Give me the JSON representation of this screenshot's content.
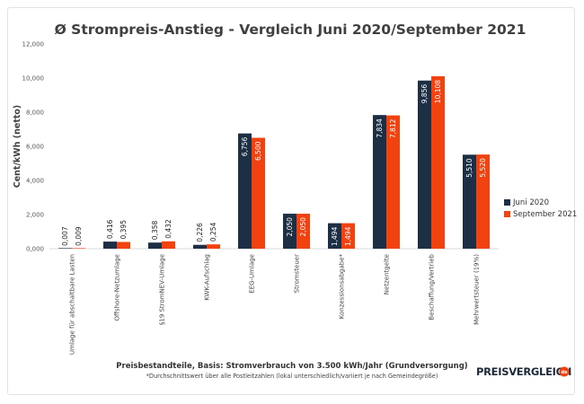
{
  "chart_data": {
    "type": "bar",
    "title": "Ø Strompreis-Anstieg -  Vergleich Juni 2020/September 2021",
    "ylabel": "Cent/kWh (netto)",
    "xlabel": "Preisbestandteile, Basis: Stromverbrauch von 3.500 kWh/Jahr (Grundversorgung)",
    "footnote": "*Durchschnittswert über alle Postleitzahlen (lokal unterschiedlich/variiert je nach Gemeindegröße)",
    "ylim": [
      0,
      12000
    ],
    "yticks": [
      "0,000",
      "2,000",
      "4,000",
      "6,000",
      "8,000",
      "10,000",
      "12,000"
    ],
    "grid": false,
    "legend_position": "right",
    "categories": [
      "Umlage für abschaltbare Lasten",
      "Offshore-Netzumlage",
      "§19 StromNEV-Umlage",
      "KWK-Aufschlag",
      "EEG-Umlage",
      "Stromsteuer",
      "Konzessionsabgabe*",
      "Netzentgelte",
      "Beschaffung/Vertrieb",
      "Mehrwertsteuer (19%)"
    ],
    "series": [
      {
        "name": "Juni 2020",
        "color": "#1c2f45",
        "values": [
          7,
          416,
          358,
          226,
          6756,
          2050,
          1494,
          7834,
          9856,
          5510
        ],
        "labels": [
          "0,007",
          "0,416",
          "0,358",
          "0,226",
          "6,756",
          "2,050",
          "1,494",
          "7,834",
          "9,856",
          "5,510"
        ]
      },
      {
        "name": "September 2021",
        "color": "#f2420f",
        "values": [
          9,
          395,
          432,
          254,
          6500,
          2050,
          1494,
          7812,
          10108,
          5520
        ],
        "labels": [
          "0,009",
          "0,395",
          "0,432",
          "0,254",
          "6,500",
          "2,050",
          "1,494",
          "7,812",
          "10,108",
          "5,520"
        ]
      }
    ]
  },
  "branding": {
    "logo_text": "PREISVERGLEICH",
    "logo_badge": "de",
    "logo_color": "#f2420f"
  }
}
